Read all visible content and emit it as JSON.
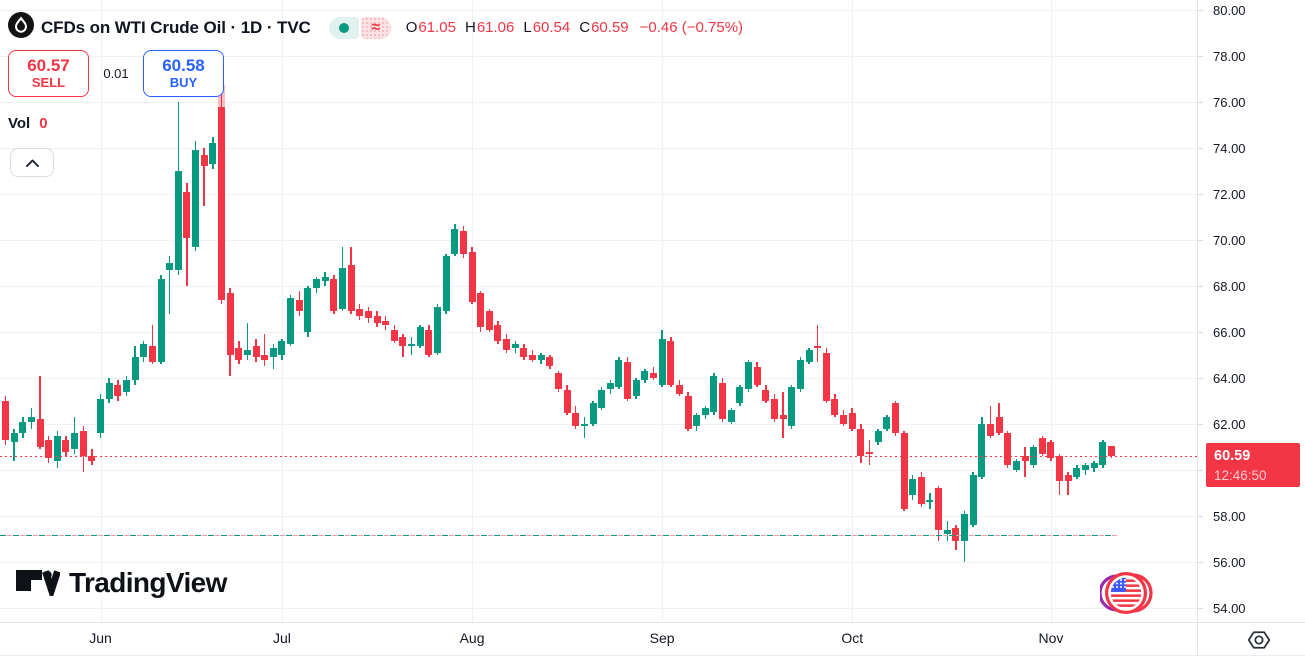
{
  "header": {
    "symbol_title": "CFDs on WTI Crude Oil · 1D · TVC",
    "delayed_symbol": "≈",
    "legend": {
      "o_label": "O",
      "o_value": "61.05",
      "h_label": "H",
      "h_value": "61.06",
      "l_label": "L",
      "l_value": "60.54",
      "c_label": "C",
      "c_value": "60.59",
      "change": "−0.46 (−0.75%)"
    }
  },
  "trade_panel": {
    "sell_price": "60.57",
    "sell_label": "SELL",
    "spread": "0.01",
    "buy_price": "60.58",
    "buy_label": "BUY"
  },
  "volume": {
    "label": "Vol",
    "value": "0"
  },
  "price_axis": {
    "ticks": [
      "80.00",
      "78.00",
      "76.00",
      "74.00",
      "72.00",
      "70.00",
      "68.00",
      "66.00",
      "64.00",
      "62.00",
      "60.00",
      "58.00",
      "56.00",
      "54.00"
    ],
    "last_price": "60.59",
    "countdown": "12:46:50"
  },
  "time_axis": {
    "months": [
      {
        "label": "Jun",
        "index": 11
      },
      {
        "label": "Jul",
        "index": 32
      },
      {
        "label": "Aug",
        "index": 54
      },
      {
        "label": "Sep",
        "index": 76
      },
      {
        "label": "Oct",
        "index": 98
      },
      {
        "label": "Nov",
        "index": 121
      }
    ]
  },
  "watermark": {
    "text": "TradingView"
  },
  "colors": {
    "up": "#089981",
    "down": "#F23645",
    "buy": "#2962FF",
    "sell": "#F23645",
    "last_price_bg": "#F23645",
    "grid": "#EEF1F5",
    "level_teal": "#089981",
    "level_pink": "#F59AA1"
  },
  "chart_data": {
    "type": "candlestick",
    "title": "CFDs on WTI Crude Oil",
    "interval": "1D",
    "exchange": "TVC",
    "ohlc_legend": {
      "open": 61.05,
      "high": 61.06,
      "low": 60.54,
      "close": 60.59,
      "change": -0.46,
      "change_pct": -0.75
    },
    "y_axis": {
      "min": 54,
      "max": 80,
      "tick_step": 2,
      "grid": true
    },
    "x_axis": {
      "visible_months": [
        "Jun",
        "Jul",
        "Aug",
        "Sep",
        "Oct",
        "Nov"
      ]
    },
    "price_lines": [
      {
        "name": "last-price",
        "price": 60.59,
        "style": "dotted"
      },
      {
        "name": "support-level",
        "price": 57.15,
        "style": "dashed"
      }
    ],
    "candles": [
      [
        63.0,
        63.2,
        61.1,
        61.3
      ],
      [
        61.2,
        61.8,
        60.4,
        61.6
      ],
      [
        61.6,
        62.3,
        61.4,
        62.1
      ],
      [
        62.1,
        62.7,
        61.8,
        62.3
      ],
      [
        62.2,
        64.1,
        60.9,
        61.0
      ],
      [
        61.3,
        61.5,
        60.3,
        60.5
      ],
      [
        60.4,
        61.7,
        60.1,
        61.5
      ],
      [
        61.3,
        61.5,
        60.6,
        60.8
      ],
      [
        60.9,
        62.3,
        60.7,
        61.6
      ],
      [
        61.7,
        61.9,
        59.9,
        60.6
      ],
      [
        60.6,
        60.9,
        60.2,
        60.4
      ],
      [
        61.6,
        63.3,
        61.4,
        63.1
      ],
      [
        63.1,
        64.0,
        62.9,
        63.8
      ],
      [
        63.7,
        63.9,
        63.0,
        63.2
      ],
      [
        63.4,
        64.1,
        63.2,
        63.9
      ],
      [
        63.9,
        65.4,
        63.7,
        64.9
      ],
      [
        64.9,
        65.6,
        64.7,
        65.5
      ],
      [
        65.4,
        66.3,
        64.6,
        64.7
      ],
      [
        64.7,
        68.5,
        64.6,
        68.3
      ],
      [
        68.7,
        69.3,
        66.8,
        69.0
      ],
      [
        68.7,
        76.0,
        68.5,
        73.0
      ],
      [
        72.1,
        72.5,
        68.0,
        70.1
      ],
      [
        69.7,
        74.3,
        69.5,
        73.9
      ],
      [
        73.7,
        74.0,
        71.5,
        73.2
      ],
      [
        73.3,
        74.5,
        73.1,
        74.2
      ],
      [
        75.8,
        76.8,
        67.2,
        67.4
      ],
      [
        67.7,
        67.9,
        64.1,
        65.0
      ],
      [
        65.3,
        65.6,
        64.6,
        64.8
      ],
      [
        65.0,
        66.4,
        64.8,
        65.2
      ],
      [
        65.4,
        65.7,
        64.7,
        64.9
      ],
      [
        65.0,
        65.9,
        64.5,
        64.8
      ],
      [
        64.9,
        65.5,
        64.4,
        65.3
      ],
      [
        65.0,
        65.7,
        64.8,
        65.6
      ],
      [
        65.5,
        67.6,
        65.4,
        67.5
      ],
      [
        67.4,
        67.8,
        66.7,
        66.9
      ],
      [
        66.0,
        68.0,
        65.8,
        67.9
      ],
      [
        67.9,
        68.4,
        67.7,
        68.3
      ],
      [
        68.2,
        68.6,
        68.0,
        68.4
      ],
      [
        68.3,
        68.5,
        66.8,
        66.9
      ],
      [
        67.0,
        69.7,
        66.9,
        68.8
      ],
      [
        68.9,
        69.7,
        66.8,
        66.9
      ],
      [
        67.0,
        67.2,
        66.5,
        66.7
      ],
      [
        66.9,
        67.1,
        66.4,
        66.6
      ],
      [
        66.7,
        66.9,
        66.2,
        66.4
      ],
      [
        66.5,
        66.7,
        66.1,
        66.3
      ],
      [
        66.1,
        66.3,
        65.5,
        65.6
      ],
      [
        65.8,
        65.9,
        64.9,
        65.4
      ],
      [
        65.4,
        65.8,
        65.0,
        65.5
      ],
      [
        65.4,
        66.3,
        65.3,
        66.2
      ],
      [
        66.1,
        66.3,
        64.9,
        65.0
      ],
      [
        65.1,
        67.2,
        65.0,
        67.1
      ],
      [
        66.9,
        69.4,
        66.8,
        69.3
      ],
      [
        69.4,
        70.7,
        69.3,
        70.5
      ],
      [
        70.4,
        70.6,
        69.2,
        69.4
      ],
      [
        69.5,
        69.7,
        67.2,
        67.3
      ],
      [
        67.7,
        67.8,
        66.0,
        66.2
      ],
      [
        66.9,
        67.0,
        66.0,
        66.1
      ],
      [
        66.3,
        66.5,
        65.5,
        65.6
      ],
      [
        65.7,
        65.9,
        65.1,
        65.2
      ],
      [
        65.3,
        65.6,
        65.1,
        65.5
      ],
      [
        65.3,
        65.5,
        64.8,
        64.9
      ],
      [
        65.0,
        65.2,
        64.7,
        64.8
      ],
      [
        64.8,
        65.1,
        64.6,
        65.0
      ],
      [
        64.9,
        65.0,
        64.4,
        64.5
      ],
      [
        64.2,
        64.3,
        63.4,
        63.5
      ],
      [
        63.5,
        63.7,
        62.4,
        62.5
      ],
      [
        62.5,
        62.8,
        61.8,
        61.9
      ],
      [
        61.9,
        62.3,
        61.4,
        62.0
      ],
      [
        62.0,
        63.0,
        61.9,
        62.9
      ],
      [
        62.7,
        63.6,
        62.6,
        63.5
      ],
      [
        63.5,
        63.9,
        63.3,
        63.8
      ],
      [
        63.6,
        64.9,
        63.5,
        64.8
      ],
      [
        64.7,
        64.9,
        63.0,
        63.1
      ],
      [
        63.2,
        64.0,
        63.1,
        63.9
      ],
      [
        63.9,
        64.4,
        63.8,
        64.3
      ],
      [
        64.2,
        64.5,
        63.9,
        64.0
      ],
      [
        63.7,
        66.1,
        63.6,
        65.7
      ],
      [
        65.6,
        65.8,
        63.6,
        63.7
      ],
      [
        63.7,
        63.9,
        63.2,
        63.3
      ],
      [
        63.2,
        63.4,
        61.7,
        61.8
      ],
      [
        61.9,
        62.5,
        61.7,
        62.4
      ],
      [
        62.4,
        62.8,
        62.2,
        62.7
      ],
      [
        62.5,
        64.2,
        62.4,
        64.1
      ],
      [
        63.8,
        64.0,
        62.1,
        62.2
      ],
      [
        62.1,
        62.7,
        62.0,
        62.6
      ],
      [
        62.9,
        63.7,
        62.8,
        63.6
      ],
      [
        63.5,
        64.8,
        63.4,
        64.7
      ],
      [
        64.5,
        64.7,
        63.6,
        63.7
      ],
      [
        63.5,
        63.7,
        62.9,
        63.0
      ],
      [
        63.1,
        63.3,
        62.1,
        62.2
      ],
      [
        62.4,
        63.4,
        61.4,
        62.2
      ],
      [
        61.9,
        63.7,
        61.8,
        63.6
      ],
      [
        63.5,
        64.9,
        63.4,
        64.8
      ],
      [
        64.7,
        65.3,
        64.6,
        65.2
      ],
      [
        65.4,
        66.3,
        64.7,
        65.3
      ],
      [
        65.1,
        65.3,
        62.9,
        63.0
      ],
      [
        63.1,
        63.3,
        62.3,
        62.4
      ],
      [
        62.4,
        62.6,
        61.9,
        62.0
      ],
      [
        62.5,
        62.7,
        61.7,
        61.8
      ],
      [
        61.8,
        62.0,
        60.3,
        60.6
      ],
      [
        60.8,
        61.3,
        60.2,
        60.7
      ],
      [
        61.2,
        61.8,
        61.1,
        61.7
      ],
      [
        61.8,
        62.4,
        61.7,
        62.3
      ],
      [
        62.9,
        63.0,
        61.5,
        61.6
      ],
      [
        61.6,
        61.7,
        58.2,
        58.3
      ],
      [
        58.9,
        59.8,
        58.7,
        59.6
      ],
      [
        59.7,
        59.9,
        58.4,
        58.5
      ],
      [
        58.6,
        59.0,
        58.3,
        58.7
      ],
      [
        59.2,
        59.3,
        56.9,
        57.4
      ],
      [
        57.2,
        57.8,
        56.9,
        57.4
      ],
      [
        57.5,
        57.6,
        56.5,
        56.9
      ],
      [
        56.9,
        58.2,
        56.0,
        58.1
      ],
      [
        57.6,
        59.9,
        57.5,
        59.8
      ],
      [
        59.7,
        62.3,
        59.6,
        62.0
      ],
      [
        62.0,
        62.8,
        61.4,
        61.5
      ],
      [
        62.3,
        62.9,
        61.5,
        61.6
      ],
      [
        61.6,
        61.7,
        60.1,
        60.2
      ],
      [
        60.0,
        60.5,
        59.9,
        60.4
      ],
      [
        60.6,
        61.0,
        59.7,
        60.4
      ],
      [
        60.2,
        61.1,
        60.1,
        61.0
      ],
      [
        61.4,
        61.5,
        60.6,
        60.7
      ],
      [
        61.2,
        61.3,
        60.4,
        60.5
      ],
      [
        60.6,
        60.7,
        58.9,
        59.5
      ],
      [
        59.8,
        59.9,
        58.9,
        59.5
      ],
      [
        59.7,
        60.2,
        59.6,
        60.1
      ],
      [
        60.0,
        60.3,
        59.8,
        60.2
      ],
      [
        60.1,
        60.4,
        59.9,
        60.3
      ],
      [
        60.2,
        61.3,
        60.1,
        61.2
      ],
      [
        61.05,
        61.06,
        60.54,
        60.59
      ]
    ]
  }
}
